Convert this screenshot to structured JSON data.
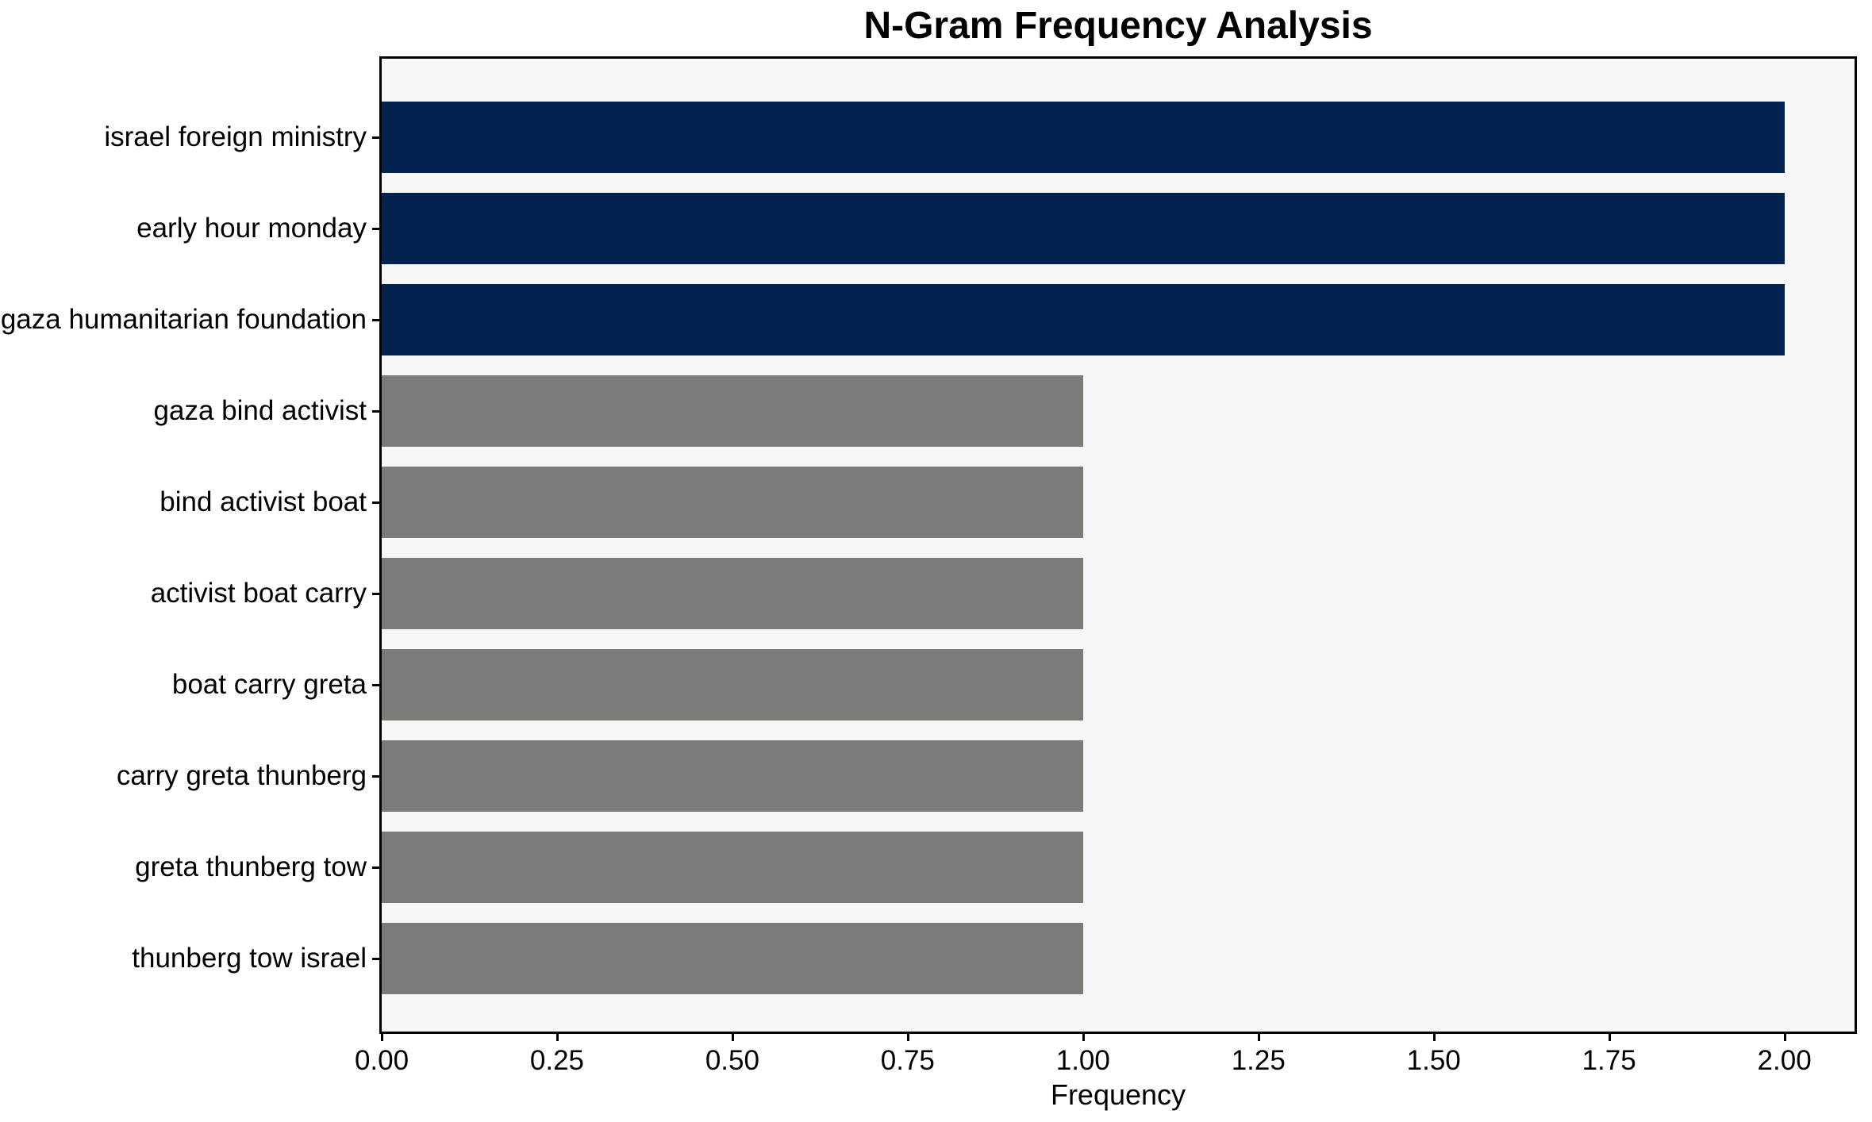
{
  "chart_data": {
    "type": "bar",
    "orientation": "horizontal",
    "title": "N-Gram Frequency Analysis",
    "xlabel": "Frequency",
    "ylabel": "",
    "categories": [
      "israel foreign ministry",
      "early hour monday",
      "gaza humanitarian foundation",
      "gaza bind activist",
      "bind activist boat",
      "activist boat carry",
      "boat carry greta",
      "carry greta thunberg",
      "greta thunberg tow",
      "thunberg tow israel"
    ],
    "values": [
      2,
      2,
      2,
      1,
      1,
      1,
      1,
      1,
      1,
      1
    ],
    "bar_colors": [
      "#02234f",
      "#02234f",
      "#02234f",
      "#7b7b78",
      "#7b7b78",
      "#7b7b78",
      "#7b7b78",
      "#7b7b78",
      "#7b7b78",
      "#7b7b78"
    ],
    "xlim": [
      0,
      2.1
    ],
    "xticks": [
      0,
      0.25,
      0.5,
      0.75,
      1.0,
      1.25,
      1.5,
      1.75,
      2.0
    ],
    "xtick_labels": [
      "0.00",
      "0.25",
      "0.50",
      "0.75",
      "1.00",
      "1.25",
      "1.50",
      "1.75",
      "2.00"
    ],
    "grid": false,
    "legend": "none",
    "colors": {
      "highlight_bar": "#02234f",
      "default_bar": "#7b7b78",
      "plot_background": "#f7f7f7",
      "figure_background": "#ffffff",
      "spine": "#000000",
      "text": "#000000"
    }
  }
}
